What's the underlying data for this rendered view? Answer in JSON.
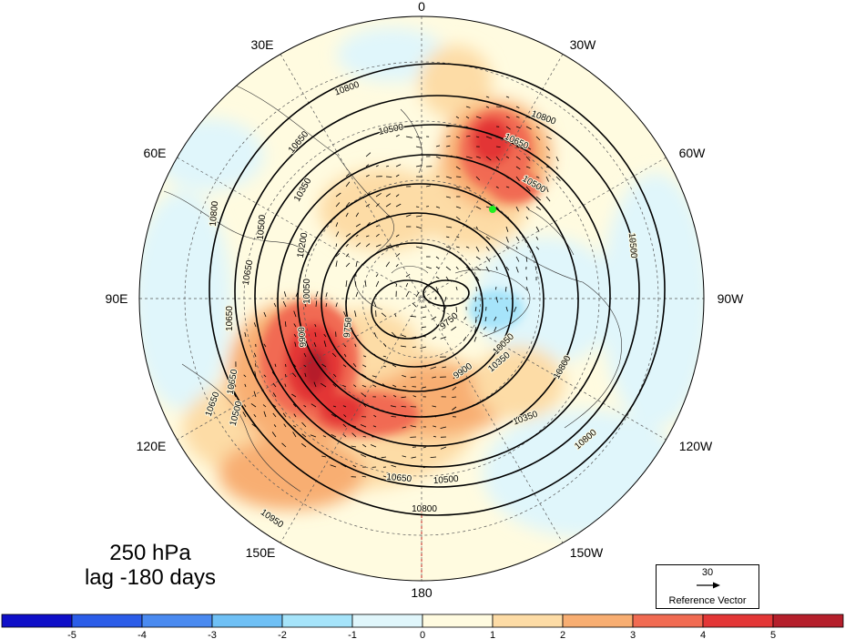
{
  "map": {
    "longitude_labels": {
      "top": "0",
      "bottom": "180",
      "e30": "30E",
      "e60": "60E",
      "e90": "90E",
      "e120": "120E",
      "e150": "150E",
      "w30": "30W",
      "w60": "60W",
      "w90": "90W",
      "w120": "120W",
      "w150": "150W"
    },
    "contour_labels": [
      "10800",
      "10800",
      "10650",
      "10650",
      "10650",
      "10500",
      "10500",
      "10500",
      "10350",
      "10350",
      "10200",
      "10050",
      "10050",
      "9750",
      "9750",
      "9900",
      "9900",
      "10650",
      "10650",
      "10500",
      "10350",
      "10800",
      "10800",
      "10650",
      "10500",
      "10800",
      "10950",
      "10650",
      "10500",
      "10800"
    ],
    "marker_color": "#22ee22"
  },
  "title": {
    "level": "250 hPa",
    "lag": "lag -180 days"
  },
  "reference_vector": {
    "value": "30",
    "label": "Reference Vector"
  },
  "colorbar": {
    "colors": [
      "#0f0fc8",
      "#2b5de8",
      "#4a8af0",
      "#6fc0f5",
      "#a6e4fa",
      "#e0f6fb",
      "#fffbe0",
      "#fddca6",
      "#f8ae72",
      "#f16b52",
      "#e33636",
      "#b51f2b"
    ],
    "ticks": [
      "-5",
      "-4",
      "-3",
      "-2",
      "-1",
      "0",
      "1",
      "2",
      "3",
      "4",
      "5"
    ]
  }
}
